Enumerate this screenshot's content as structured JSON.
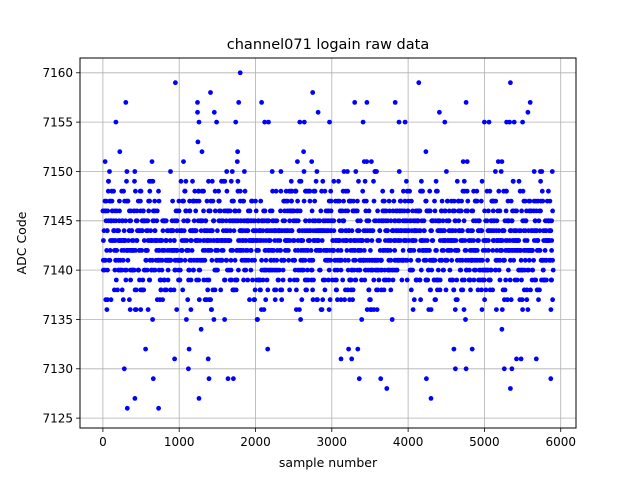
{
  "chart_data": {
    "type": "scatter",
    "title": "channel071 logain raw data",
    "xlabel": "sample number",
    "ylabel": "ADC Code",
    "xlim": [
      -300,
      6200
    ],
    "ylim": [
      7124,
      7161.5
    ],
    "xticks": [
      0,
      1000,
      2000,
      3000,
      4000,
      5000,
      6000
    ],
    "yticks": [
      7125,
      7130,
      7135,
      7140,
      7145,
      7150,
      7155,
      7160
    ],
    "grid": true,
    "marker_color": "#0000ff",
    "n_samples": 5900,
    "core_range": [
      7133,
      7153
    ],
    "series": [
      {
        "values": [
          {
            "x": 320,
            "y": 7126
          },
          {
            "x": 730,
            "y": 7126
          },
          {
            "x": 420,
            "y": 7127
          },
          {
            "x": 1260,
            "y": 7127
          },
          {
            "x": 4300,
            "y": 7127
          },
          {
            "x": 3720,
            "y": 7128
          },
          {
            "x": 5340,
            "y": 7128
          },
          {
            "x": 1390,
            "y": 7129
          },
          {
            "x": 1640,
            "y": 7129
          },
          {
            "x": 1710,
            "y": 7129
          },
          {
            "x": 3360,
            "y": 7129
          },
          {
            "x": 3640,
            "y": 7129
          },
          {
            "x": 4240,
            "y": 7129
          },
          {
            "x": 5870,
            "y": 7129
          },
          {
            "x": 280,
            "y": 7130
          },
          {
            "x": 1120,
            "y": 7130
          },
          {
            "x": 4620,
            "y": 7130
          },
          {
            "x": 4760,
            "y": 7130
          },
          {
            "x": 5260,
            "y": 7130
          },
          {
            "x": 5360,
            "y": 7130
          },
          {
            "x": 660,
            "y": 7129
          },
          {
            "x": 940,
            "y": 7131
          },
          {
            "x": 1380,
            "y": 7131
          },
          {
            "x": 3120,
            "y": 7131
          },
          {
            "x": 3260,
            "y": 7131
          },
          {
            "x": 5420,
            "y": 7131
          },
          {
            "x": 5480,
            "y": 7131
          },
          {
            "x": 5680,
            "y": 7131
          },
          {
            "x": 560,
            "y": 7132
          },
          {
            "x": 1130,
            "y": 7132
          },
          {
            "x": 2160,
            "y": 7132
          },
          {
            "x": 3220,
            "y": 7132
          },
          {
            "x": 3340,
            "y": 7132
          },
          {
            "x": 4600,
            "y": 7132
          },
          {
            "x": 4840,
            "y": 7132
          },
          {
            "x": 950,
            "y": 7159
          },
          {
            "x": 4140,
            "y": 7159
          },
          {
            "x": 5340,
            "y": 7159
          },
          {
            "x": 1800,
            "y": 7160
          },
          {
            "x": 1410,
            "y": 7158
          },
          {
            "x": 2750,
            "y": 7158
          },
          {
            "x": 1240,
            "y": 7157
          },
          {
            "x": 1780,
            "y": 7157
          },
          {
            "x": 2080,
            "y": 7157
          },
          {
            "x": 3300,
            "y": 7157
          },
          {
            "x": 3460,
            "y": 7157
          },
          {
            "x": 3830,
            "y": 7157
          },
          {
            "x": 4760,
            "y": 7157
          },
          {
            "x": 5600,
            "y": 7157
          },
          {
            "x": 300,
            "y": 7157
          },
          {
            "x": 1240,
            "y": 7156
          },
          {
            "x": 1460,
            "y": 7156
          },
          {
            "x": 2820,
            "y": 7156
          },
          {
            "x": 4410,
            "y": 7156
          },
          {
            "x": 5570,
            "y": 7156
          },
          {
            "x": 170,
            "y": 7155
          },
          {
            "x": 1260,
            "y": 7155
          },
          {
            "x": 1490,
            "y": 7155
          },
          {
            "x": 1740,
            "y": 7155
          },
          {
            "x": 2120,
            "y": 7155
          },
          {
            "x": 2170,
            "y": 7155
          },
          {
            "x": 2580,
            "y": 7155
          },
          {
            "x": 2640,
            "y": 7155
          },
          {
            "x": 2970,
            "y": 7155
          },
          {
            "x": 3410,
            "y": 7155
          },
          {
            "x": 3880,
            "y": 7155
          },
          {
            "x": 3960,
            "y": 7155
          },
          {
            "x": 4480,
            "y": 7155
          },
          {
            "x": 5000,
            "y": 7155
          },
          {
            "x": 5060,
            "y": 7155
          },
          {
            "x": 5290,
            "y": 7155
          },
          {
            "x": 5330,
            "y": 7155
          },
          {
            "x": 5390,
            "y": 7155
          },
          {
            "x": 5500,
            "y": 7155
          }
        ]
      }
    ]
  }
}
